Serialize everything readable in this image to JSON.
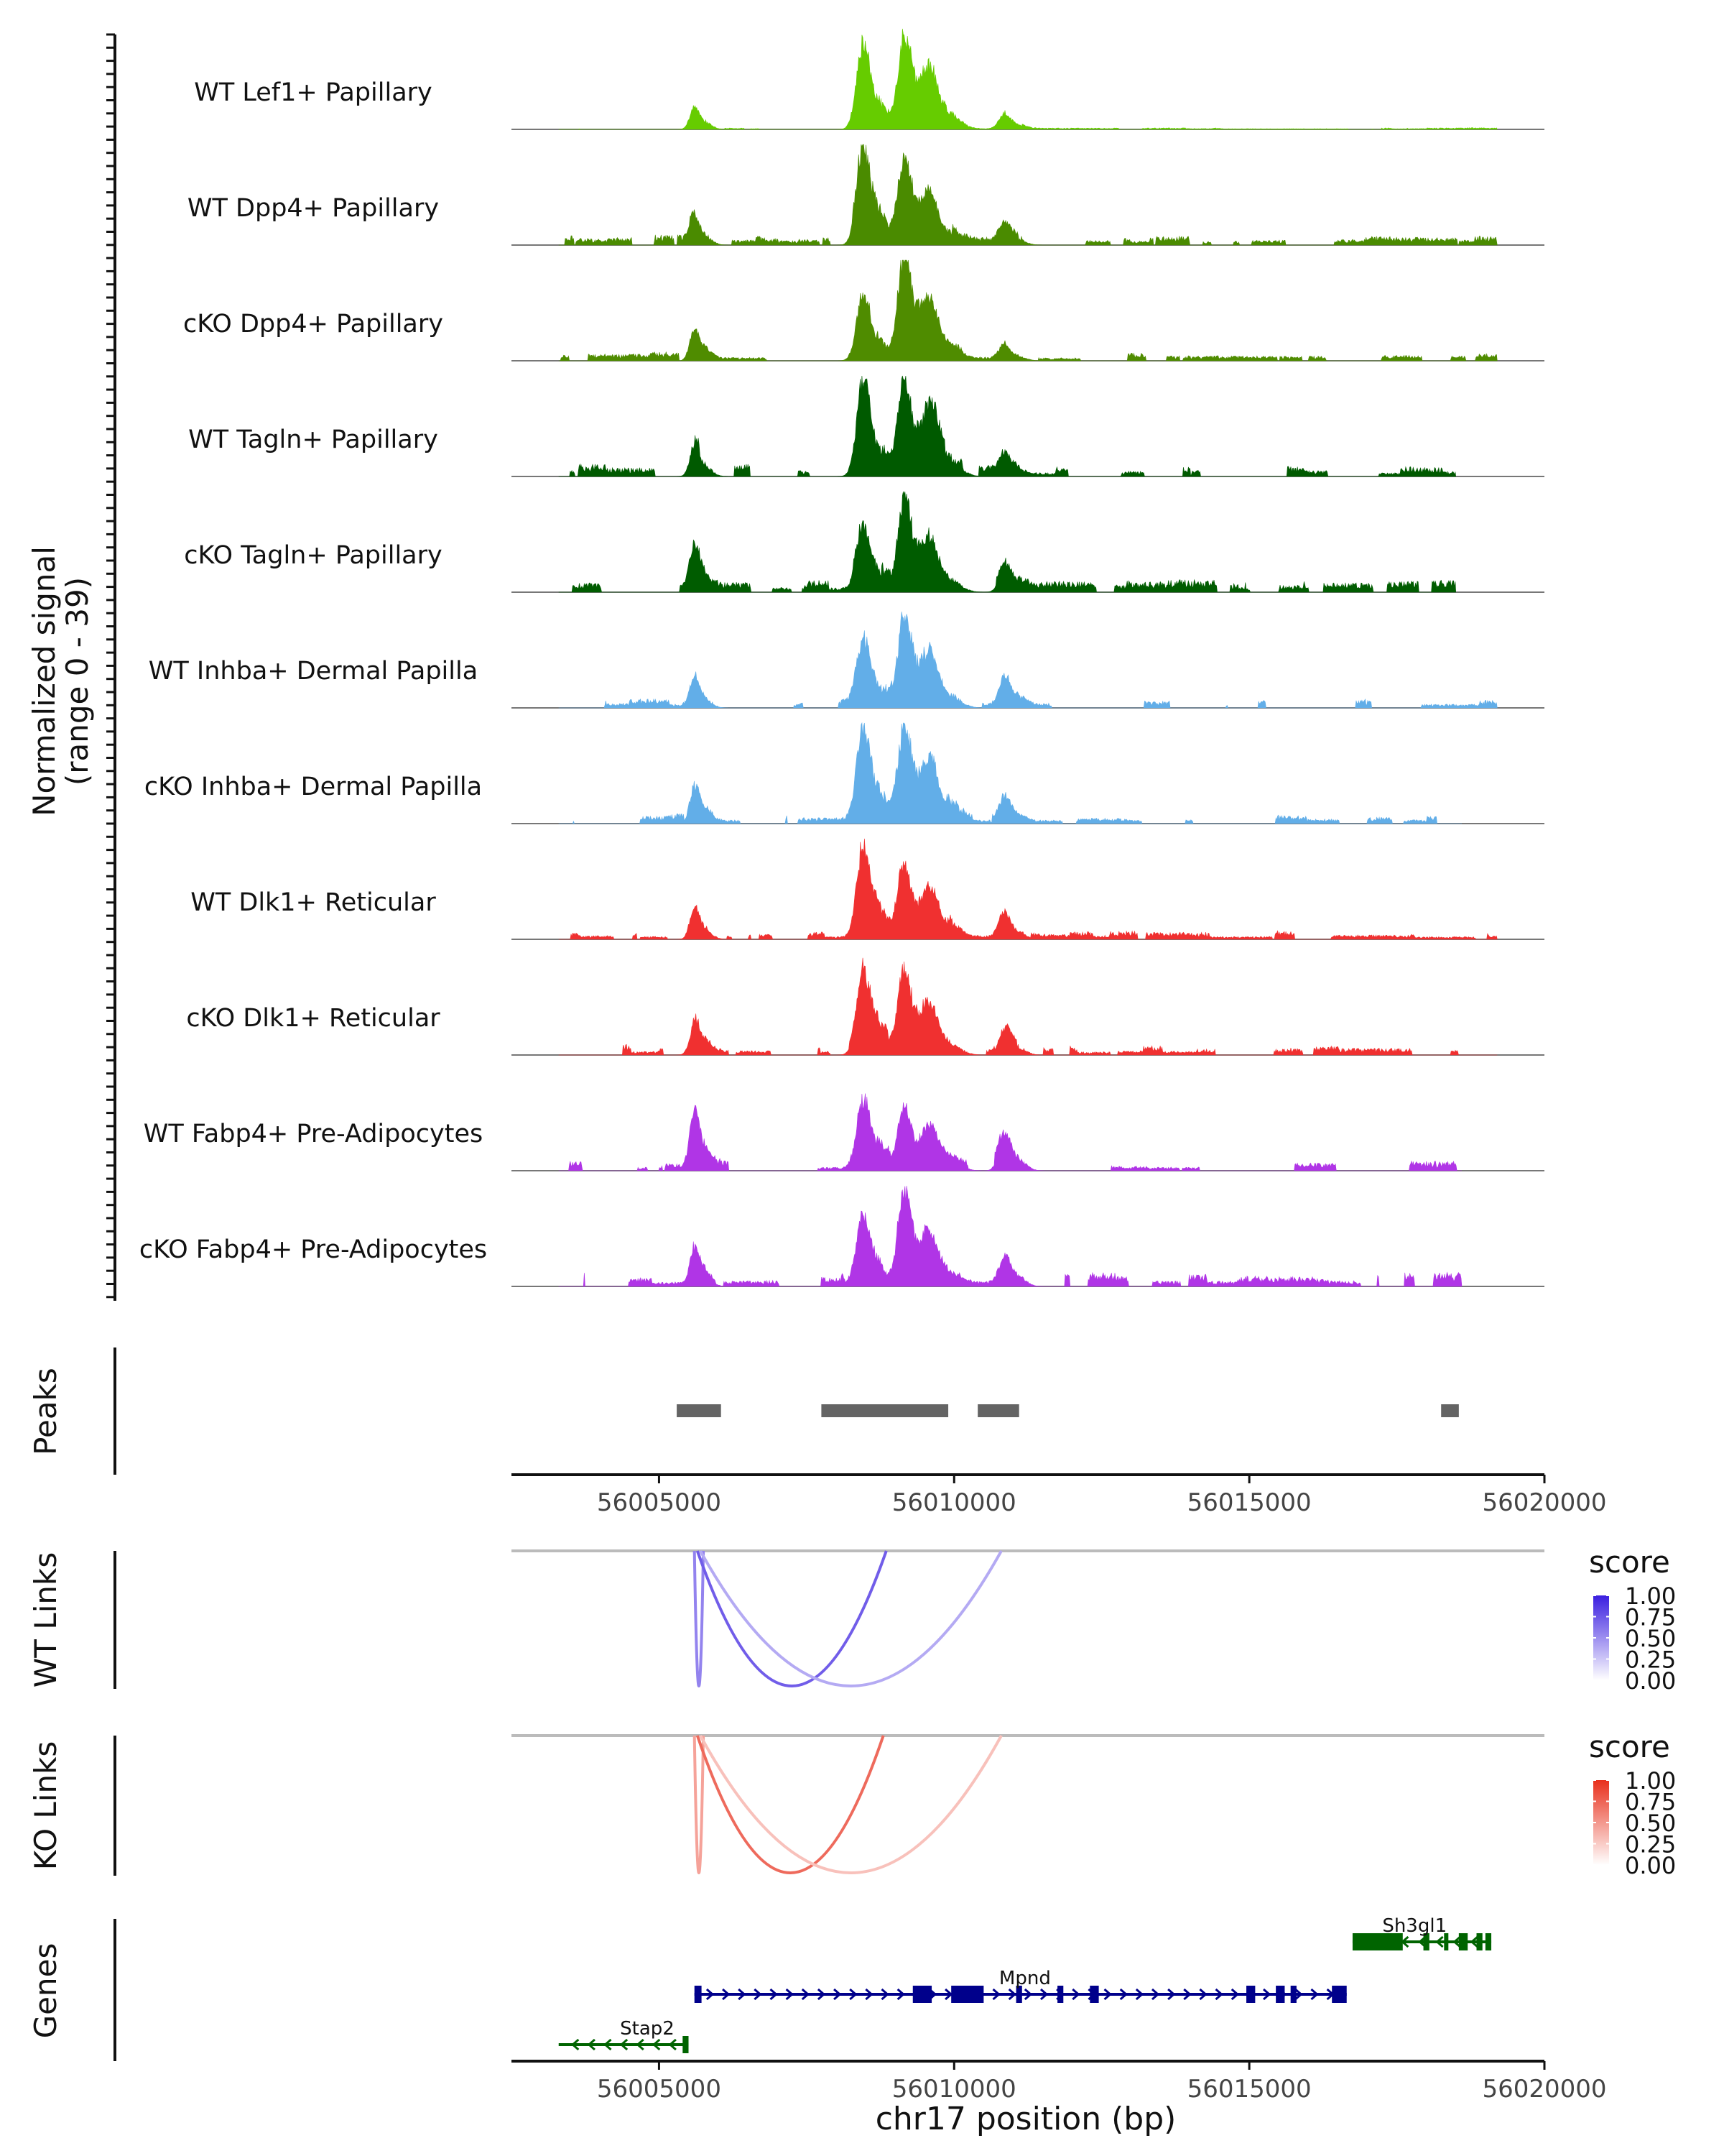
{
  "chart_data": {
    "type": "area",
    "region": {
      "chromosome": "chr17",
      "start": 56002500,
      "end": 56020000
    },
    "coverage": {
      "ylabel": "Normalized signal",
      "ylabel_range": "(range 0 - 39)",
      "ylim": [
        0,
        39
      ],
      "peak_centers": [
        {
          "pos": 56005600,
          "width": 110
        },
        {
          "pos": 56008450,
          "width": 150
        },
        {
          "pos": 56009150,
          "width": 150
        },
        {
          "pos": 56009600,
          "width": 180
        },
        {
          "pos": 56010850,
          "width": 130
        }
      ],
      "tracks": [
        {
          "label": "WT Lef1+ Papillary",
          "color": "#66cc00",
          "heights": [
            0.21,
            0.79,
            0.88,
            0.45,
            0.14
          ],
          "background": 0.01,
          "background_end": 56019200
        },
        {
          "label": "WT Dpp4+ Papillary",
          "color": "#4a8b00",
          "heights": [
            0.26,
            0.88,
            0.76,
            0.35,
            0.17
          ],
          "background": 0.06,
          "background_end": 56019200
        },
        {
          "label": "cKO Dpp4+ Papillary",
          "color": "#4f8c00",
          "heights": [
            0.3,
            0.62,
            1.0,
            0.4,
            0.14
          ],
          "background": 0.05,
          "background_end": 56019200
        },
        {
          "label": "WT Tagln+ Papillary",
          "color": "#005a00",
          "heights": [
            0.3,
            0.88,
            0.86,
            0.55,
            0.16
          ],
          "background": 0.07,
          "background_end": 56018500
        },
        {
          "label": "cKO Tagln+ Papillary",
          "color": "#005c00",
          "heights": [
            0.4,
            0.6,
            0.9,
            0.4,
            0.22
          ],
          "background": 0.07,
          "background_end": 56018500
        },
        {
          "label": "WT Inhba+ Dermal Papilla",
          "color": "#62aee8",
          "heights": [
            0.26,
            0.64,
            0.88,
            0.4,
            0.26
          ],
          "background": 0.05,
          "background_end": 56019200
        },
        {
          "label": "cKO Inhba+ Dermal Papilla",
          "color": "#62aee8",
          "heights": [
            0.36,
            0.88,
            0.9,
            0.5,
            0.2
          ],
          "background": 0.06,
          "background_end": 56018600
        },
        {
          "label": "WT Dlk1+ Reticular",
          "color": "#f03030",
          "heights": [
            0.3,
            0.82,
            0.66,
            0.4,
            0.24
          ],
          "background": 0.05,
          "background_end": 56019200
        },
        {
          "label": "cKO Dlk1+ Reticular",
          "color": "#f03030",
          "heights": [
            0.3,
            0.76,
            0.8,
            0.35,
            0.24
          ],
          "background": 0.06,
          "background_end": 56019200
        },
        {
          "label": "WT Fabp4+ Pre-Adipocytes",
          "color": "#b035e6",
          "heights": [
            0.52,
            0.66,
            0.58,
            0.3,
            0.36
          ],
          "background": 0.06,
          "background_end": 56018600
        },
        {
          "label": "cKO Fabp4+ Pre-Adipocytes",
          "color": "#b035e6",
          "heights": [
            0.3,
            0.6,
            0.85,
            0.35,
            0.3
          ],
          "background": 0.08,
          "background_end": 56018600
        }
      ]
    },
    "peaks": {
      "label": "Peaks",
      "regions": [
        [
          56005300,
          56006050
        ],
        [
          56007750,
          56009900
        ],
        [
          56010400,
          56011100
        ],
        [
          56018250,
          56018550
        ]
      ]
    },
    "position_axis": {
      "ticks": [
        56005000,
        56010000,
        56015000,
        56020000
      ],
      "tick_labels": [
        "56005000",
        "56010000",
        "56015000",
        "56020000"
      ],
      "xlabel": "chr17 position (bp)"
    },
    "links": [
      {
        "label": "WT Links",
        "legend_title": "score",
        "legend_ticks": [
          "1.00",
          "0.75",
          "0.50",
          "0.25",
          "0.00"
        ],
        "color_low": "#ffffff",
        "color_high": "#3a1ee0",
        "arcs": [
          {
            "start": 56005600,
            "end": 56005750,
            "score": 0.55
          },
          {
            "start": 56005650,
            "end": 56008850,
            "score": 0.72
          },
          {
            "start": 56005700,
            "end": 56010800,
            "score": 0.38
          }
        ]
      },
      {
        "label": "KO Links",
        "legend_title": "score",
        "legend_ticks": [
          "1.00",
          "0.75",
          "0.50",
          "0.25",
          "0.00"
        ],
        "color_low": "#ffffff",
        "color_high": "#e8301c",
        "arcs": [
          {
            "start": 56005600,
            "end": 56005750,
            "score": 0.45
          },
          {
            "start": 56005650,
            "end": 56008800,
            "score": 0.72
          },
          {
            "start": 56005700,
            "end": 56010800,
            "score": 0.3
          }
        ]
      }
    ],
    "genes": {
      "label": "Genes",
      "items": [
        {
          "name": "Sh3gl1",
          "strand": "-",
          "color": "#006400",
          "row": 0,
          "start": 56016750,
          "end": 56019100,
          "exons": [
            [
              56016750,
              56017600
            ],
            [
              56017950,
              56018050
            ],
            [
              56018300,
              56018360
            ],
            [
              56018550,
              56018700
            ],
            [
              56018850,
              56018950
            ],
            [
              56019000,
              56019100
            ]
          ]
        },
        {
          "name": "Mpnd",
          "strand": "+",
          "color": "#00008b",
          "row": 1,
          "start": 56005600,
          "end": 56016650,
          "exons": [
            [
              56005600,
              56005720
            ],
            [
              56009300,
              56009620
            ],
            [
              56009950,
              56010500
            ],
            [
              56011050,
              56011150
            ],
            [
              56011750,
              56011850
            ],
            [
              56012300,
              56012450
            ],
            [
              56014950,
              56015100
            ],
            [
              56015450,
              56015600
            ],
            [
              56015700,
              56015800
            ],
            [
              56016400,
              56016650
            ]
          ]
        },
        {
          "name": "Stap2",
          "strand": "-",
          "color": "#006400",
          "row": 2,
          "start": 56003300,
          "end": 56005500,
          "exons": [
            [
              56005400,
              56005500
            ]
          ]
        }
      ]
    }
  }
}
